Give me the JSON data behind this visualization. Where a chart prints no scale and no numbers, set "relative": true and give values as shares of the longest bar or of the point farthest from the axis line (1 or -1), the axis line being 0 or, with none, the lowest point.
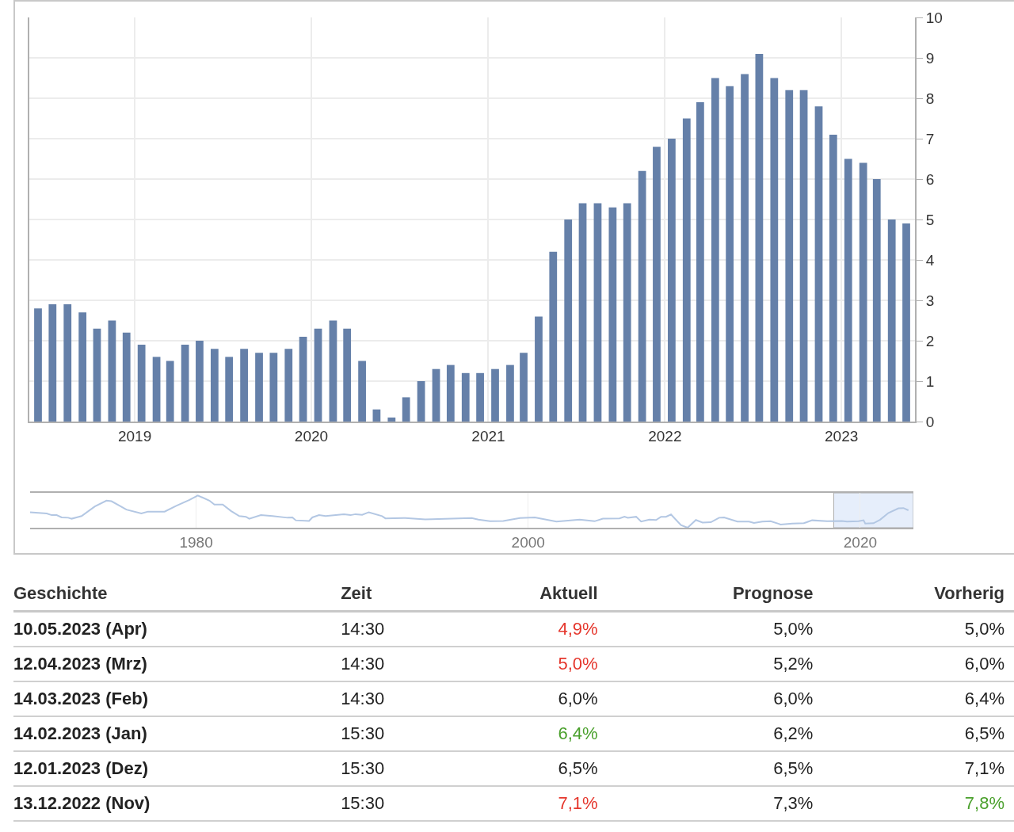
{
  "chart_data": [
    {
      "type": "bar",
      "color": "#6580a9",
      "x": [
        "2018-06-15",
        "2018-07-15",
        "2018-08-15",
        "2018-09-15",
        "2018-10-15",
        "2018-11-15",
        "2018-12-15",
        "2019-01-15",
        "2019-02-15",
        "2019-03-15",
        "2019-04-15",
        "2019-05-15",
        "2019-06-15",
        "2019-07-15",
        "2019-08-15",
        "2019-09-15",
        "2019-10-15",
        "2019-11-15",
        "2019-12-15",
        "2020-01-15",
        "2020-02-15",
        "2020-03-15",
        "2020-04-15",
        "2020-05-15",
        "2020-06-15",
        "2020-07-15",
        "2020-08-15",
        "2020-09-15",
        "2020-10-15",
        "2020-11-15",
        "2020-12-15",
        "2021-01-15",
        "2021-02-15",
        "2021-03-15",
        "2021-04-15",
        "2021-05-15",
        "2021-06-15",
        "2021-07-15",
        "2021-08-15",
        "2021-09-15",
        "2021-10-15",
        "2021-11-15",
        "2021-12-15",
        "2022-01-15",
        "2022-02-15",
        "2022-03-15",
        "2022-04-15",
        "2022-05-15",
        "2022-06-15",
        "2022-07-15",
        "2022-08-15",
        "2022-09-15",
        "2022-10-15",
        "2022-11-15",
        "2022-12-15",
        "2023-01-15",
        "2023-02-15",
        "2023-03-15",
        "2023-04-15",
        "2023-05-15"
      ],
      "values": [
        2.8,
        2.9,
        2.9,
        2.7,
        2.3,
        2.5,
        2.2,
        1.9,
        1.6,
        1.5,
        1.9,
        2.0,
        1.8,
        1.6,
        1.8,
        1.7,
        1.7,
        1.8,
        2.1,
        2.3,
        2.5,
        2.3,
        1.5,
        0.3,
        0.1,
        0.6,
        1.0,
        1.3,
        1.4,
        1.2,
        1.2,
        1.3,
        1.4,
        1.7,
        2.6,
        4.2,
        5.0,
        5.4,
        5.4,
        5.3,
        5.4,
        6.2,
        6.8,
        7.0,
        7.5,
        7.9,
        8.5,
        8.3,
        8.6,
        9.1,
        8.5,
        8.2,
        8.2,
        7.8,
        7.1,
        6.5,
        6.4,
        6.0,
        5.0,
        4.9
      ],
      "xlim": [
        "2018-05-28",
        "2023-06-02"
      ],
      "xticks": [
        {
          "value": "2019-01-01",
          "label": "2019"
        },
        {
          "value": "2020-01-01",
          "label": "2020"
        },
        {
          "value": "2021-01-01",
          "label": "2021"
        },
        {
          "value": "2022-01-01",
          "label": "2022"
        },
        {
          "value": "2023-01-01",
          "label": "2023"
        }
      ],
      "ylim": [
        0,
        10
      ],
      "yticks": [
        0,
        1,
        2,
        3,
        4,
        5,
        6,
        7,
        8,
        9,
        10
      ],
      "grid": true
    },
    {
      "type": "line",
      "relative": true,
      "color": "#b3c7e3",
      "x": [
        1970.0,
        1971.0,
        1971.3,
        1971.6,
        1971.9,
        1972.3,
        1972.5,
        1972.8,
        1973.1,
        1973.9,
        1974.6,
        1974.9,
        1975.4,
        1975.8,
        1976.7,
        1977.1,
        1978.1,
        1978.8,
        1979.6,
        1980.1,
        1980.8,
        1981.1,
        1981.6,
        1982.1,
        1982.6,
        1983.0,
        1983.2,
        1983.9,
        1984.6,
        1985.5,
        1985.8,
        1986.0,
        1986.8,
        1987.0,
        1987.4,
        1987.8,
        1988.9,
        1989.3,
        1989.6,
        1990.0,
        1990.4,
        1991.2,
        1991.4,
        1992.6,
        1993.8,
        1996.6,
        1997.0,
        1997.7,
        1998.5,
        1999.5,
        2000.4,
        2001.7,
        2003.1,
        2004.0,
        2004.5,
        2005.5,
        2005.8,
        2006.0,
        2006.5,
        2006.8,
        2007.3,
        2007.7,
        2008.0,
        2008.3,
        2008.6,
        2009.2,
        2009.6,
        2010.1,
        2010.5,
        2011.0,
        2011.5,
        2011.8,
        2012.6,
        2013.3,
        2013.6,
        2014.1,
        2014.6,
        2015.1,
        2015.2,
        2015.9,
        2016.6,
        2017.1,
        2018.0,
        2018.9,
        2019.2,
        2019.9,
        2020.2,
        2020.3,
        2020.8,
        2021.2,
        2021.7,
        2022.3,
        2022.6,
        2022.9
      ],
      "values": [
        0.48,
        0.44,
        0.39,
        0.39,
        0.32,
        0.31,
        0.28,
        0.32,
        0.36,
        0.66,
        0.84,
        0.82,
        0.68,
        0.56,
        0.44,
        0.5,
        0.5,
        0.68,
        0.86,
        1.0,
        0.84,
        0.72,
        0.72,
        0.52,
        0.36,
        0.34,
        0.28,
        0.39,
        0.36,
        0.31,
        0.32,
        0.23,
        0.21,
        0.32,
        0.39,
        0.36,
        0.42,
        0.39,
        0.42,
        0.4,
        0.48,
        0.36,
        0.29,
        0.3,
        0.26,
        0.3,
        0.25,
        0.2,
        0.21,
        0.3,
        0.32,
        0.19,
        0.25,
        0.2,
        0.28,
        0.29,
        0.34,
        0.31,
        0.34,
        0.19,
        0.25,
        0.24,
        0.34,
        0.34,
        0.41,
        0.08,
        0,
        0.24,
        0.16,
        0.17,
        0.31,
        0.32,
        0.19,
        0.19,
        0.15,
        0.19,
        0.2,
        0.12,
        0.1,
        0.13,
        0.14,
        0.23,
        0.2,
        0.21,
        0.19,
        0.2,
        0.23,
        0.13,
        0.14,
        0.25,
        0.46,
        0.6,
        0.61,
        0.54
      ],
      "xlim": [
        1970.0,
        2023.2
      ],
      "xticks": [
        1980,
        2000,
        2020
      ],
      "grid": "x",
      "bands": [
        {
          "axis": "x",
          "from": 2018.4,
          "to": 2023.2,
          "color": "#e6eefb"
        }
      ]
    },
    {
      "type": "other",
      "categories": [
        "Geschichte",
        "Zeit",
        "Aktuell",
        "Prognose",
        "Vorherig"
      ],
      "cell_labels": [
        [
          "10.05.2023 (Apr)",
          "14:30",
          "4,9%",
          "5,0%",
          "5,0%"
        ],
        [
          "12.04.2023 (Mrz)",
          "14:30",
          "5,0%",
          "5,2%",
          "6,0%"
        ],
        [
          "14.03.2023 (Feb)",
          "14:30",
          "6,0%",
          "6,0%",
          "6,4%"
        ],
        [
          "14.02.2023 (Jan)",
          "15:30",
          "6,4%",
          "6,2%",
          "6,5%"
        ],
        [
          "12.01.2023 (Dez)",
          "15:30",
          "6,5%",
          "6,5%",
          "7,1%"
        ],
        [
          "13.12.2022 (Nov)",
          "15:30",
          "7,1%",
          "7,3%",
          "7,8%"
        ]
      ],
      "colors": [
        [
          "#222222",
          "#222222",
          "#e5362c",
          "#222222",
          "#222222"
        ],
        [
          "#222222",
          "#222222",
          "#e5362c",
          "#222222",
          "#222222"
        ],
        [
          "#222222",
          "#222222",
          "#222222",
          "#222222",
          "#222222"
        ],
        [
          "#222222",
          "#222222",
          "#4aa02c",
          "#222222",
          "#222222"
        ],
        [
          "#222222",
          "#222222",
          "#222222",
          "#222222",
          "#222222"
        ],
        [
          "#222222",
          "#222222",
          "#e5362c",
          "#222222",
          "#4aa02c"
        ]
      ]
    }
  ]
}
